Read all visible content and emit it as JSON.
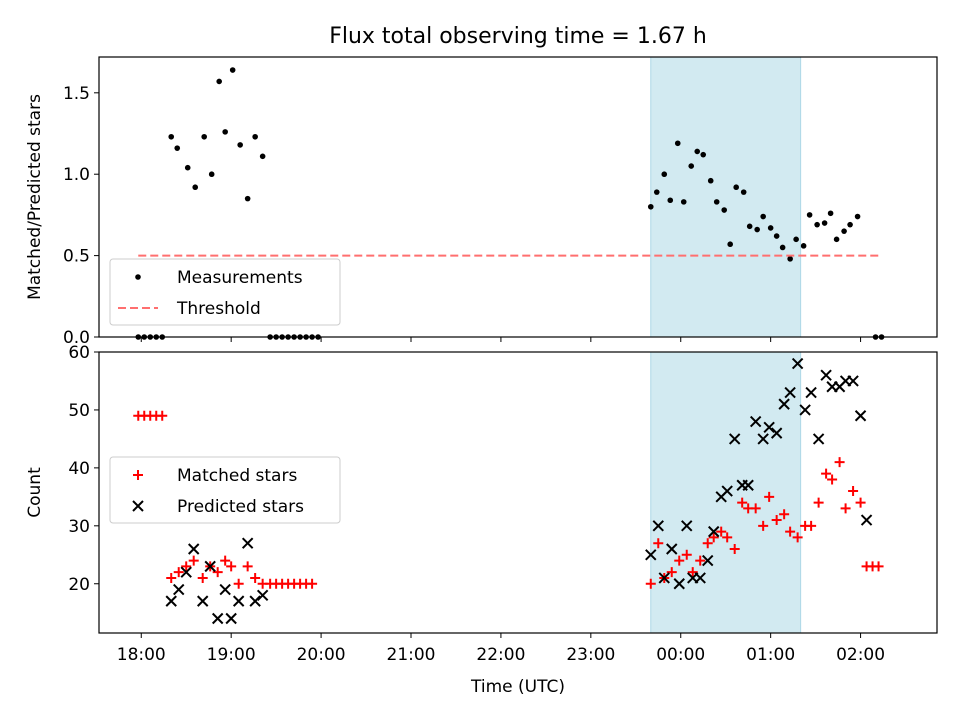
{
  "title": "Flux total observing time = 1.67 h",
  "xlabel": "Time (UTC)",
  "x_ticks": [
    "18:00",
    "19:00",
    "20:00",
    "21:00",
    "22:00",
    "23:00",
    "00:00",
    "01:00",
    "02:00"
  ],
  "shaded_interval": [
    "23:40",
    "01:20"
  ],
  "colors": {
    "measurements": "#000000",
    "threshold": "#ff6f6f",
    "matched": "#ff0000",
    "predicted": "#000000",
    "shade": "#add8e6"
  },
  "chart_data": [
    {
      "type": "scatter",
      "ylabel": "Matched/Predicted stars",
      "ylim": [
        0,
        1.72
      ],
      "yticks": [
        "0.0",
        "0.5",
        "1.0",
        "1.5"
      ],
      "legend_position": "lower-left",
      "series": [
        {
          "name": "Measurements",
          "marker": "dot",
          "points": [
            [
              "17:58",
              0
            ],
            [
              "18:02",
              0
            ],
            [
              "18:06",
              0
            ],
            [
              "18:10",
              0
            ],
            [
              "18:14",
              0
            ],
            [
              "18:20",
              1.23
            ],
            [
              "18:24",
              1.16
            ],
            [
              "18:31",
              1.04
            ],
            [
              "18:36",
              0.92
            ],
            [
              "18:42",
              1.23
            ],
            [
              "18:47",
              1.0
            ],
            [
              "18:52",
              1.57
            ],
            [
              "18:56",
              1.26
            ],
            [
              "19:01",
              1.64
            ],
            [
              "19:06",
              1.18
            ],
            [
              "19:11",
              0.85
            ],
            [
              "19:16",
              1.23
            ],
            [
              "19:21",
              1.11
            ],
            [
              "19:26",
              0
            ],
            [
              "19:30",
              0
            ],
            [
              "19:34",
              0
            ],
            [
              "19:38",
              0
            ],
            [
              "19:42",
              0
            ],
            [
              "19:46",
              0
            ],
            [
              "19:50",
              0
            ],
            [
              "19:54",
              0
            ],
            [
              "19:58",
              0
            ],
            [
              "23:40",
              0.8
            ],
            [
              "23:44",
              0.89
            ],
            [
              "23:49",
              1.0
            ],
            [
              "23:53",
              0.84
            ],
            [
              "23:58",
              1.19
            ],
            [
              "00:02",
              0.83
            ],
            [
              "00:07",
              1.05
            ],
            [
              "00:11",
              1.14
            ],
            [
              "00:15",
              1.12
            ],
            [
              "00:20",
              0.96
            ],
            [
              "00:24",
              0.83
            ],
            [
              "00:29",
              0.78
            ],
            [
              "00:33",
              0.57
            ],
            [
              "00:37",
              0.92
            ],
            [
              "00:42",
              0.89
            ],
            [
              "00:46",
              0.68
            ],
            [
              "00:51",
              0.66
            ],
            [
              "00:55",
              0.74
            ],
            [
              "01:00",
              0.67
            ],
            [
              "01:04",
              0.62
            ],
            [
              "01:08",
              0.55
            ],
            [
              "01:13",
              0.48
            ],
            [
              "01:17",
              0.6
            ],
            [
              "01:22",
              0.56
            ],
            [
              "01:26",
              0.75
            ],
            [
              "01:31",
              0.69
            ],
            [
              "01:36",
              0.7
            ],
            [
              "01:40",
              0.76
            ],
            [
              "01:44",
              0.6
            ],
            [
              "01:49",
              0.65
            ],
            [
              "01:53",
              0.69
            ],
            [
              "01:58",
              0.74
            ],
            [
              "02:10",
              0
            ],
            [
              "02:14",
              0
            ]
          ]
        },
        {
          "name": "Threshold",
          "type": "line",
          "style": "dashed",
          "points": [
            [
              "17:58",
              0.5
            ],
            [
              "02:12",
              0.5
            ]
          ]
        }
      ]
    },
    {
      "type": "scatter",
      "ylabel": "Count",
      "ylim": [
        11.5,
        60
      ],
      "yticks": [
        "20",
        "30",
        "40",
        "50",
        "60"
      ],
      "legend_position": "center-left",
      "series": [
        {
          "name": "Matched stars",
          "marker": "plus",
          "points": [
            [
              "17:58",
              49
            ],
            [
              "18:02",
              49
            ],
            [
              "18:06",
              49
            ],
            [
              "18:10",
              49
            ],
            [
              "18:14",
              49
            ],
            [
              "18:20",
              21
            ],
            [
              "18:25",
              22
            ],
            [
              "18:30",
              23
            ],
            [
              "18:35",
              24
            ],
            [
              "18:41",
              21
            ],
            [
              "18:46",
              23
            ],
            [
              "18:51",
              22
            ],
            [
              "18:56",
              24
            ],
            [
              "19:00",
              23
            ],
            [
              "19:05",
              20
            ],
            [
              "19:11",
              23
            ],
            [
              "19:16",
              21
            ],
            [
              "19:21",
              20
            ],
            [
              "19:26",
              20
            ],
            [
              "19:30",
              20
            ],
            [
              "19:34",
              20
            ],
            [
              "19:38",
              20
            ],
            [
              "19:42",
              20
            ],
            [
              "19:46",
              20
            ],
            [
              "19:50",
              20
            ],
            [
              "19:54",
              20
            ],
            [
              "23:40",
              20
            ],
            [
              "23:45",
              27
            ],
            [
              "23:49",
              21
            ],
            [
              "23:54",
              22
            ],
            [
              "23:59",
              24
            ],
            [
              "00:04",
              25
            ],
            [
              "00:08",
              22
            ],
            [
              "00:13",
              24
            ],
            [
              "00:18",
              27
            ],
            [
              "00:22",
              28
            ],
            [
              "00:27",
              29
            ],
            [
              "00:31",
              28
            ],
            [
              "00:36",
              26
            ],
            [
              "00:41",
              34
            ],
            [
              "00:45",
              33
            ],
            [
              "00:50",
              33
            ],
            [
              "00:55",
              30
            ],
            [
              "00:59",
              35
            ],
            [
              "01:04",
              31
            ],
            [
              "01:09",
              32
            ],
            [
              "01:13",
              29
            ],
            [
              "01:18",
              28
            ],
            [
              "01:23",
              30
            ],
            [
              "01:27",
              30
            ],
            [
              "01:32",
              34
            ],
            [
              "01:37",
              39
            ],
            [
              "01:41",
              38
            ],
            [
              "01:46",
              41
            ],
            [
              "01:50",
              33
            ],
            [
              "01:55",
              36
            ],
            [
              "02:00",
              34
            ],
            [
              "02:04",
              23
            ],
            [
              "02:08",
              23
            ],
            [
              "02:12",
              23
            ]
          ]
        },
        {
          "name": "Predicted stars",
          "marker": "x",
          "points": [
            [
              "18:20",
              17
            ],
            [
              "18:25",
              19
            ],
            [
              "18:30",
              22
            ],
            [
              "18:35",
              26
            ],
            [
              "18:41",
              17
            ],
            [
              "18:46",
              23
            ],
            [
              "18:51",
              14
            ],
            [
              "18:56",
              19
            ],
            [
              "19:00",
              14
            ],
            [
              "19:05",
              17
            ],
            [
              "19:11",
              27
            ],
            [
              "19:16",
              17
            ],
            [
              "19:21",
              18
            ],
            [
              "23:40",
              25
            ],
            [
              "23:45",
              30
            ],
            [
              "23:49",
              21
            ],
            [
              "23:54",
              26
            ],
            [
              "23:59",
              20
            ],
            [
              "00:04",
              30
            ],
            [
              "00:08",
              21
            ],
            [
              "00:13",
              21
            ],
            [
              "00:18",
              24
            ],
            [
              "00:22",
              29
            ],
            [
              "00:27",
              35
            ],
            [
              "00:31",
              36
            ],
            [
              "00:36",
              45
            ],
            [
              "00:41",
              37
            ],
            [
              "00:45",
              37
            ],
            [
              "00:50",
              48
            ],
            [
              "00:55",
              45
            ],
            [
              "00:59",
              47
            ],
            [
              "01:04",
              46
            ],
            [
              "01:09",
              51
            ],
            [
              "01:13",
              53
            ],
            [
              "01:18",
              58
            ],
            [
              "01:23",
              50
            ],
            [
              "01:27",
              53
            ],
            [
              "01:32",
              45
            ],
            [
              "01:37",
              56
            ],
            [
              "01:41",
              54
            ],
            [
              "01:46",
              54
            ],
            [
              "01:50",
              55
            ],
            [
              "01:55",
              55
            ],
            [
              "02:00",
              49
            ],
            [
              "02:04",
              31
            ]
          ]
        }
      ]
    }
  ]
}
